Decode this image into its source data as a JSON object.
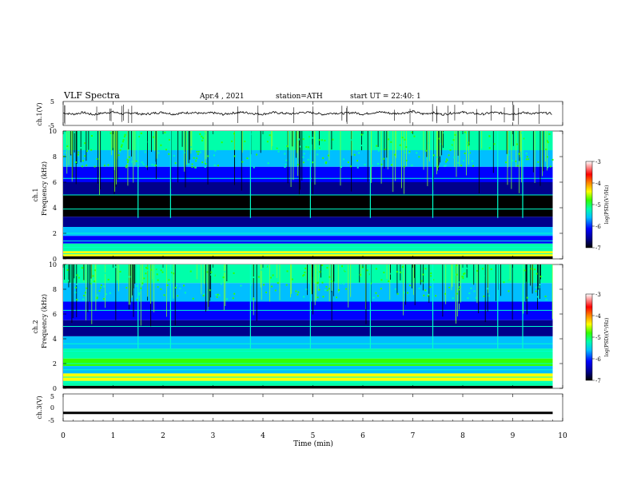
{
  "header": {
    "title": "VLF  Spectra",
    "date": "Apr.4 , 2021",
    "station": "station=ATH",
    "start": "start  UT  =   22:40: 1"
  },
  "chart_data": [
    {
      "type": "line",
      "ylabel": "ch.1(V)",
      "ylim": [
        -5,
        5
      ],
      "y_ticks": [
        "5",
        "-5"
      ],
      "description_of_series": "noisy waveform around ~0.1 V with spikes",
      "x": [
        0,
        0.2,
        0.4,
        0.6,
        0.8,
        1,
        1.2,
        1.4,
        1.6,
        1.8,
        2,
        2.2,
        2.4,
        2.6,
        2.8,
        3,
        3.2,
        3.4,
        3.6,
        3.8,
        4,
        4.2,
        4.4,
        4.6,
        4.8,
        5,
        5.2,
        5.4,
        5.6,
        5.8,
        6,
        6.2,
        6.4,
        6.6,
        6.8,
        7,
        7.2,
        7.4,
        7.6,
        7.8,
        8,
        8.2,
        8.4,
        8.6,
        8.8,
        9,
        9.2,
        9.4,
        9.6,
        9.8
      ],
      "y": [
        0.2,
        -0.3,
        0.4,
        -0.5,
        0.2,
        0.6,
        -0.2,
        0.3,
        -0.4,
        0.1,
        0.5,
        -0.3,
        0.2,
        0.4,
        -0.1,
        0.3,
        -0.4,
        0.2,
        0.5,
        0.0,
        -0.3,
        0.4,
        0.1,
        -0.2,
        0.5,
        0.3,
        -0.4,
        0.2,
        0.0,
        0.4,
        -0.3,
        0.3,
        0.6,
        -0.1,
        0.2,
        0.8,
        -0.2,
        0.3,
        -0.4,
        0.2,
        0.5,
        0.0,
        -0.3,
        0.4,
        0.1,
        -0.2,
        0.3,
        0.0,
        0.2,
        -0.1
      ]
    },
    {
      "type": "heatmap",
      "ylabel": "ch.1\nFrequency  (kHz)",
      "ylim": [
        0,
        10
      ],
      "xlim": [
        0,
        10
      ],
      "y_ticks": [
        "0",
        "2",
        "4",
        "6",
        "8",
        "10"
      ],
      "colorbar": {
        "label": "log(PSD)(V²/Hz)",
        "ticks": [
          "-3",
          "-4",
          "-5",
          "-6",
          "-7"
        ],
        "range": [
          -7,
          -3
        ]
      }
    },
    {
      "type": "heatmap",
      "ylabel": "ch.2\nFrequency  (kHz)",
      "ylim": [
        0,
        10
      ],
      "xlim": [
        0,
        10
      ],
      "y_ticks": [
        "0",
        "2",
        "4",
        "6",
        "8",
        "10"
      ],
      "colorbar": {
        "label": "log(PSD)(V²/Hz)",
        "ticks": [
          "-3",
          "-4",
          "-5",
          "-6",
          "-7"
        ],
        "range": [
          -7,
          -3
        ]
      }
    },
    {
      "type": "line",
      "ylabel": "ch.3(V)",
      "ylim": [
        -5,
        5
      ],
      "y_ticks": [
        "5",
        "0",
        "-5"
      ],
      "x": [
        0,
        9.8
      ],
      "y": [
        -2,
        -2
      ]
    }
  ],
  "x_axis": {
    "label": "Time  (min)",
    "ticks": [
      "0",
      "1",
      "2",
      "3",
      "4",
      "5",
      "6",
      "7",
      "8",
      "9",
      "10"
    ],
    "range": [
      0,
      10
    ]
  },
  "colors": {
    "axis": "#000000",
    "colormap": [
      "#000000",
      "#00008b",
      "#0000ff",
      "#00bfff",
      "#00ffaa",
      "#33ff00",
      "#ffff00",
      "#ff8800",
      "#ff0000",
      "#ffffff"
    ]
  }
}
